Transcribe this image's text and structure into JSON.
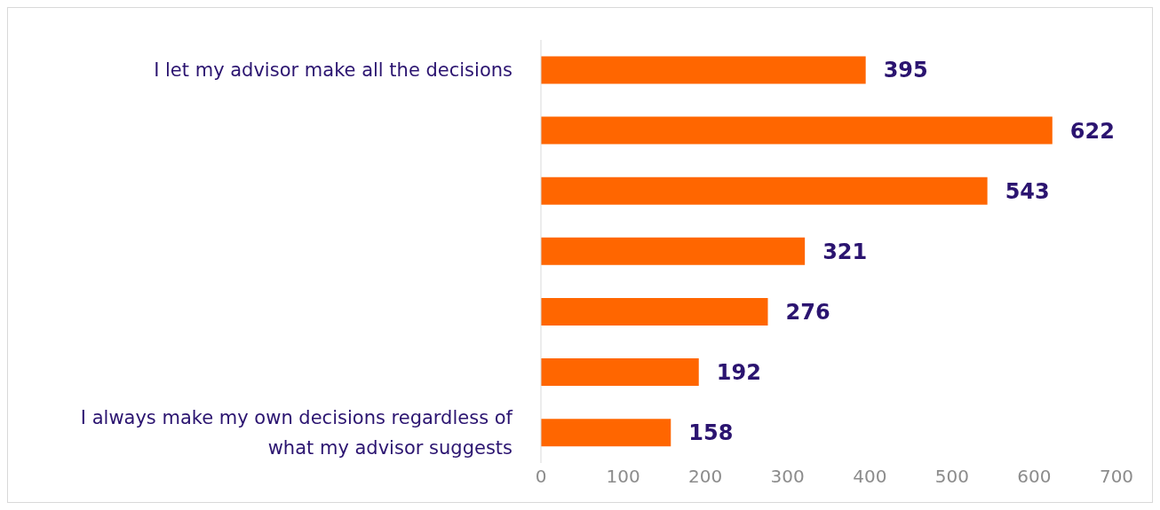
{
  "chart_data": {
    "type": "bar",
    "orientation": "horizontal",
    "categories": [
      "I let my advisor make all the decisions",
      null,
      null,
      null,
      null,
      null,
      "I always make my own decisions regardless of what my advisor suggests"
    ],
    "values": [
      395,
      622,
      543,
      321,
      276,
      192,
      158
    ],
    "color": "#ff6600",
    "xlim": [
      0,
      700
    ],
    "xticks": [
      0,
      100,
      200,
      300,
      400,
      500,
      600,
      700
    ],
    "data_labels": true
  }
}
